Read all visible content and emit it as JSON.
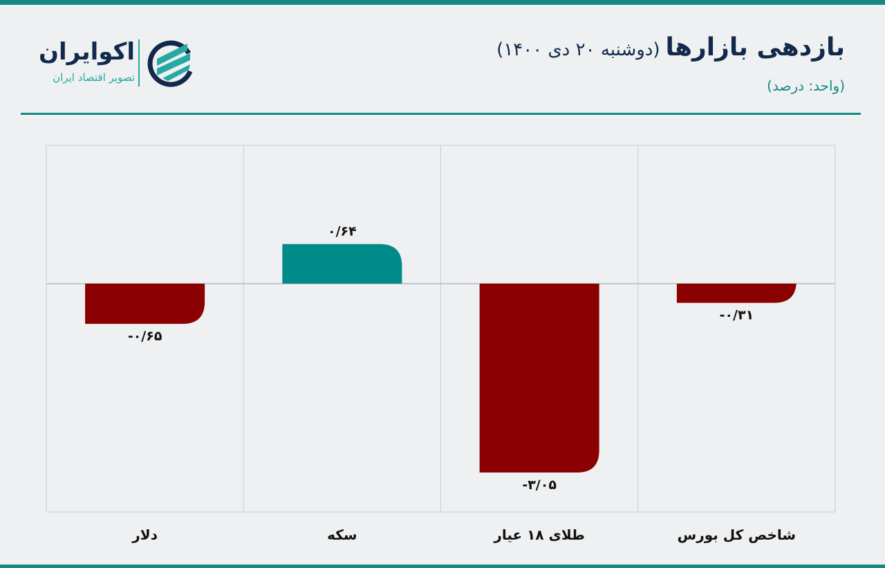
{
  "header": {
    "title": "بازدهی بازارها",
    "subtitle": "(دوشنبه ۲۰ دی ۱۴۰۰)",
    "unit": "(واحد: درصد)"
  },
  "logo": {
    "name": "اکوایران",
    "tagline": "تصویر اقتصاد ایران"
  },
  "colors": {
    "positive": "#008b8b",
    "negative": "#8b0000",
    "accent": "#138a87"
  },
  "chart_data": {
    "type": "bar",
    "title": "بازدهی بازارها (دوشنبه ۲۰ دی ۱۴۰۰)",
    "ylabel": "درصد",
    "categories": [
      "دلار",
      "سکه",
      "طلای ۱۸ عیار",
      "شاخص کل بورس"
    ],
    "values": [
      -0.65,
      0.64,
      -3.05,
      -0.31
    ],
    "labels": [
      "-۰/۶۵",
      "۰/۶۴",
      "-۳/۰۵",
      "-۰/۳۱"
    ],
    "ylim": [
      -3.4,
      1.0
    ],
    "grid": true
  }
}
